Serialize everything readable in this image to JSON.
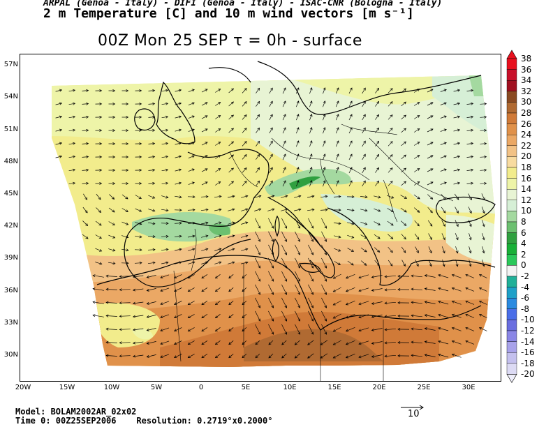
{
  "header": {
    "line1": "ARPAL (Genoa - Italy)  -  DIFI (Genoa - Italy)  -  ISAC-CNR (Bologna - Italy)",
    "line2": "2 m Temperature [C] and 10 m wind vectors [m s⁻¹]",
    "title": "00Z Mon 25 SEP  τ = 0h  -  surface"
  },
  "map": {
    "lat_labels": [
      "57N",
      "54N",
      "51N",
      "48N",
      "45N",
      "42N",
      "39N",
      "36N",
      "33N",
      "30N"
    ],
    "lon_labels": [
      "20W",
      "15W",
      "10W",
      "5W",
      "0",
      "5E",
      "10E",
      "15E",
      "20E",
      "25E",
      "30E"
    ],
    "domain": {
      "lon_min": -20,
      "lon_max": 33.5,
      "lat_min": 27.3,
      "lat_max": 58
    }
  },
  "colorbar": {
    "labels": [
      "38",
      "36",
      "34",
      "32",
      "30",
      "28",
      "26",
      "24",
      "22",
      "20",
      "18",
      "16",
      "14",
      "12",
      "10",
      "8",
      "6",
      "4",
      "2",
      "0",
      "-2",
      "-4",
      "-6",
      "-8",
      "-10",
      "-12",
      "-14",
      "-16",
      "-18",
      "-20"
    ],
    "colors": [
      "#e8101e",
      "#c8102a",
      "#a01020",
      "#8a4a22",
      "#b06a32",
      "#d07a38",
      "#e0914a",
      "#eba865",
      "#f2c286",
      "#f8dba0",
      "#f2ec8c",
      "#eef4a8",
      "#e8f4d4",
      "#d6efd6",
      "#a4d9a0",
      "#6cc070",
      "#30a040",
      "#18b038",
      "#2ac85a",
      "#f2f2f2",
      "#20b098",
      "#1ea0c8",
      "#2a8ae0",
      "#4a6ee8",
      "#6a6ee0",
      "#8a86e6",
      "#a8a2ea",
      "#c4c0ee",
      "#dcdaf4"
    ]
  },
  "reference_vector": {
    "value": "10"
  },
  "footer": {
    "model": "Model: BOLAM2002AR_02x02",
    "time_line": "Time 0: 00Z25SEP2006    Resolution: 0.2719°x0.2000°"
  }
}
